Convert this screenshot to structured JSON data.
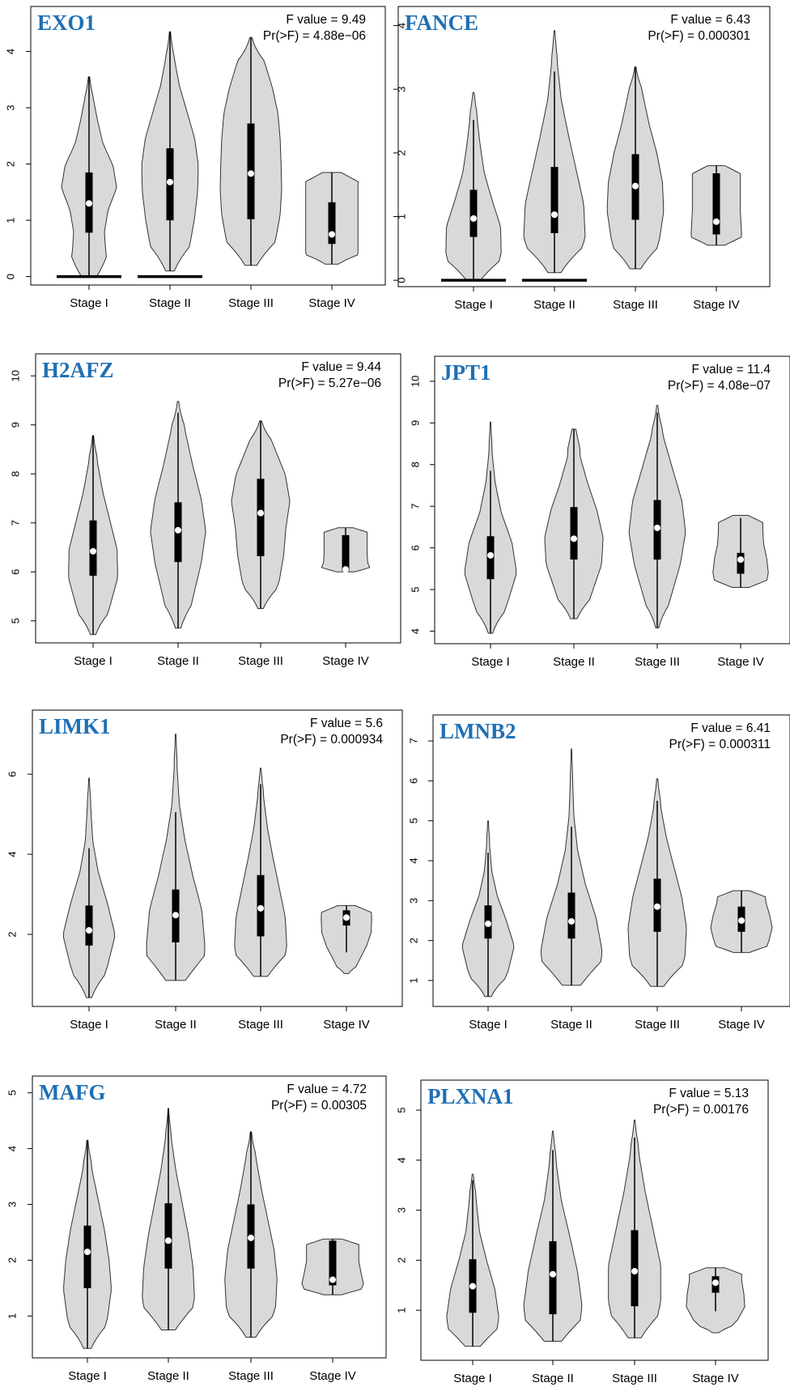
{
  "chart_data": [
    {
      "type": "violin",
      "gene": "EXO1",
      "f_value": "F value = 9.49",
      "p_value": "Pr(>F) = 4.88e−06",
      "categories": [
        "Stage I",
        "Stage II",
        "Stage III",
        "Stage IV"
      ],
      "ylim": [
        -0.15,
        4.8
      ],
      "yticks": [
        0,
        1,
        2,
        3,
        4
      ],
      "stages": [
        {
          "min": 0.0,
          "q1": 0.78,
          "median": 1.3,
          "q3": 1.85,
          "wl": 0.0,
          "wh": 3.55,
          "max": 3.55,
          "zero_bar": true,
          "shape": [
            0.7,
            0.55,
            0.5,
            0.62,
            0.9,
            0.78,
            0.45,
            0.28,
            0.14,
            0.06
          ]
        },
        {
          "min": 0.1,
          "q1": 1.0,
          "median": 1.68,
          "q3": 2.28,
          "wl": 0.1,
          "wh": 4.35,
          "max": 4.35,
          "zero_bar": true,
          "shape": [
            0.4,
            0.65,
            0.8,
            0.9,
            0.92,
            0.8,
            0.55,
            0.3,
            0.14,
            0.05
          ]
        },
        {
          "min": 0.2,
          "q1": 1.02,
          "median": 1.83,
          "q3": 2.72,
          "wl": 0.2,
          "wh": 4.25,
          "max": 4.25,
          "zero_bar": false,
          "shape": [
            0.55,
            0.8,
            0.95,
            1.0,
            0.98,
            0.95,
            0.88,
            0.7,
            0.45,
            0.1
          ]
        },
        {
          "min": 0.22,
          "q1": 0.58,
          "median": 0.75,
          "q3": 1.32,
          "wl": 0.22,
          "wh": 1.85,
          "max": 1.85,
          "zero_bar": false,
          "shape": [
            0.6,
            0.85,
            0.85,
            0.85,
            0.85,
            0.85,
            0.85,
            0.85,
            0.85,
            0.85
          ]
        }
      ]
    },
    {
      "type": "violin",
      "gene": "FANCE",
      "f_value": "F value = 6.43",
      "p_value": "Pr(>F) = 0.000301",
      "categories": [
        "Stage I",
        "Stage II",
        "Stage III",
        "Stage IV"
      ],
      "ylim": [
        -0.1,
        4.3
      ],
      "yticks": [
        0,
        1,
        2,
        3,
        4
      ],
      "stages": [
        {
          "min": 0.0,
          "q1": 0.68,
          "median": 0.97,
          "q3": 1.42,
          "wl": 0.0,
          "wh": 2.52,
          "max": 2.95,
          "zero_bar": true,
          "shape": [
            0.65,
            0.9,
            0.88,
            0.6,
            0.35,
            0.22,
            0.12,
            0.06
          ]
        },
        {
          "min": 0.12,
          "q1": 0.74,
          "median": 1.03,
          "q3": 1.78,
          "wl": 0.12,
          "wh": 3.28,
          "max": 3.92,
          "zero_bar": true,
          "shape": [
            0.6,
            1.0,
            0.95,
            0.7,
            0.45,
            0.22,
            0.1,
            0.04
          ]
        },
        {
          "min": 0.18,
          "q1": 0.95,
          "median": 1.48,
          "q3": 1.98,
          "wl": 0.18,
          "wh": 3.35,
          "max": 3.35,
          "zero_bar": false,
          "shape": [
            0.5,
            0.78,
            0.92,
            0.88,
            0.7,
            0.45,
            0.25,
            0.06
          ]
        },
        {
          "min": 0.55,
          "q1": 0.72,
          "median": 0.92,
          "q3": 1.68,
          "wl": 0.55,
          "wh": 1.8,
          "max": 1.8,
          "zero_bar": false,
          "shape": [
            0.78,
            0.82,
            0.8,
            0.78,
            0.78,
            0.78,
            0.78,
            0.78
          ]
        }
      ]
    },
    {
      "type": "violin",
      "gene": "H2AFZ",
      "f_value": "F value = 9.44",
      "p_value": "Pr(>F) = 5.27e−06",
      "categories": [
        "Stage I",
        "Stage II",
        "Stage III",
        "Stage IV"
      ],
      "ylim": [
        4.55,
        10.45
      ],
      "yticks": [
        5,
        6,
        7,
        8,
        9,
        10
      ],
      "stages": [
        {
          "min": 4.72,
          "q1": 5.92,
          "median": 6.42,
          "q3": 7.05,
          "wl": 4.72,
          "wh": 8.78,
          "max": 8.78,
          "zero_bar": false,
          "shape": [
            0.25,
            0.55,
            0.8,
            0.78,
            0.55,
            0.32,
            0.15,
            0.05
          ]
        },
        {
          "min": 4.85,
          "q1": 6.2,
          "median": 6.85,
          "q3": 7.42,
          "wl": 4.85,
          "wh": 9.25,
          "max": 9.48,
          "zero_bar": false,
          "shape": [
            0.25,
            0.5,
            0.75,
            0.9,
            0.75,
            0.48,
            0.25,
            0.06
          ]
        },
        {
          "min": 5.25,
          "q1": 6.32,
          "median": 7.2,
          "q3": 7.9,
          "wl": 5.25,
          "wh": 9.08,
          "max": 9.08,
          "zero_bar": false,
          "shape": [
            0.25,
            0.6,
            0.75,
            0.82,
            0.95,
            0.8,
            0.45,
            0.1
          ]
        },
        {
          "min": 6.0,
          "q1": 6.02,
          "median": 6.05,
          "q3": 6.75,
          "wl": 6.0,
          "wh": 6.9,
          "max": 6.9,
          "zero_bar": false,
          "shape": [
            0.85,
            0.72,
            0.7,
            0.7,
            0.7,
            0.7
          ]
        }
      ]
    },
    {
      "type": "violin",
      "gene": "JPT1",
      "f_value": "F value = 11.4",
      "p_value": "Pr(>F) = 4.08e−07",
      "categories": [
        "Stage I",
        "Stage II",
        "Stage III",
        "Stage IV"
      ],
      "ylim": [
        3.7,
        10.6
      ],
      "yticks": [
        4,
        5,
        6,
        7,
        8,
        9,
        10
      ],
      "stages": [
        {
          "min": 3.95,
          "q1": 5.25,
          "median": 5.82,
          "q3": 6.28,
          "wl": 3.95,
          "wh": 7.85,
          "max": 9.02,
          "zero_bar": false,
          "shape": [
            0.2,
            0.55,
            0.85,
            0.7,
            0.35,
            0.15,
            0.05,
            0.03
          ]
        },
        {
          "min": 4.3,
          "q1": 5.72,
          "median": 6.22,
          "q3": 6.98,
          "wl": 4.3,
          "wh": 8.85,
          "max": 8.85,
          "zero_bar": false,
          "shape": [
            0.3,
            0.6,
            0.9,
            0.95,
            0.75,
            0.45,
            0.2,
            0.18
          ]
        },
        {
          "min": 4.08,
          "q1": 5.72,
          "median": 6.48,
          "q3": 7.15,
          "wl": 4.08,
          "wh": 9.25,
          "max": 9.42,
          "zero_bar": false,
          "shape": [
            0.15,
            0.45,
            0.75,
            0.92,
            0.8,
            0.5,
            0.2,
            0.05
          ]
        },
        {
          "min": 5.05,
          "q1": 5.38,
          "median": 5.72,
          "q3": 5.88,
          "wl": 5.05,
          "wh": 6.72,
          "max": 6.78,
          "zero_bar": false,
          "shape": [
            0.8,
            0.9,
            0.85,
            0.75,
            0.72,
            0.72
          ]
        }
      ]
    },
    {
      "type": "violin",
      "gene": "LIMK1",
      "f_value": "F value = 5.6",
      "p_value": "Pr(>F) = 0.000934",
      "categories": [
        "Stage I",
        "Stage II",
        "Stage III",
        "Stage IV"
      ],
      "ylim": [
        0.2,
        7.6
      ],
      "yticks": [
        2,
        4,
        6
      ],
      "stages": [
        {
          "min": 0.42,
          "q1": 1.72,
          "median": 2.1,
          "q3": 2.72,
          "wl": 0.42,
          "wh": 4.15,
          "max": 5.9,
          "zero_bar": false,
          "shape": [
            0.25,
            0.6,
            0.85,
            0.6,
            0.3,
            0.12,
            0.06,
            0.03
          ]
        },
        {
          "min": 0.85,
          "q1": 1.8,
          "median": 2.48,
          "q3": 3.12,
          "wl": 0.85,
          "wh": 5.05,
          "max": 7.0,
          "zero_bar": false,
          "shape": [
            0.9,
            0.95,
            0.85,
            0.55,
            0.3,
            0.12,
            0.05,
            0.03
          ]
        },
        {
          "min": 0.95,
          "q1": 1.95,
          "median": 2.65,
          "q3": 3.48,
          "wl": 0.95,
          "wh": 5.75,
          "max": 6.15,
          "zero_bar": false,
          "shape": [
            0.65,
            0.85,
            0.8,
            0.6,
            0.4,
            0.22,
            0.1,
            0.04
          ]
        },
        {
          "min": 1.02,
          "q1": 2.22,
          "median": 2.42,
          "q3": 2.6,
          "wl": 1.55,
          "wh": 2.72,
          "max": 2.72,
          "zero_bar": false,
          "shape": [
            0.2,
            0.42,
            0.65,
            0.8,
            0.82,
            0.8
          ]
        }
      ]
    },
    {
      "type": "violin",
      "gene": "LMNB2",
      "f_value": "F value = 6.41",
      "p_value": "Pr(>F) = 0.000311",
      "categories": [
        "Stage I",
        "Stage II",
        "Stage III",
        "Stage IV"
      ],
      "ylim": [
        0.35,
        7.65
      ],
      "yticks": [
        1,
        2,
        3,
        4,
        5,
        6,
        7
      ],
      "stages": [
        {
          "min": 0.6,
          "q1": 2.05,
          "median": 2.42,
          "q3": 2.88,
          "wl": 0.6,
          "wh": 4.2,
          "max": 5.0,
          "zero_bar": false,
          "shape": [
            0.3,
            0.65,
            0.85,
            0.6,
            0.3,
            0.12,
            0.05,
            0.03
          ]
        },
        {
          "min": 0.88,
          "q1": 2.05,
          "median": 2.48,
          "q3": 3.2,
          "wl": 0.88,
          "wh": 4.85,
          "max": 6.8,
          "zero_bar": false,
          "shape": [
            0.85,
            1.0,
            0.8,
            0.45,
            0.2,
            0.08,
            0.04,
            0.02
          ]
        },
        {
          "min": 0.85,
          "q1": 2.22,
          "median": 2.85,
          "q3": 3.55,
          "wl": 0.85,
          "wh": 5.5,
          "max": 6.05,
          "zero_bar": false,
          "shape": [
            0.6,
            0.9,
            0.95,
            0.8,
            0.55,
            0.3,
            0.12,
            0.05
          ]
        },
        {
          "min": 1.7,
          "q1": 2.22,
          "median": 2.5,
          "q3": 2.85,
          "wl": 1.7,
          "wh": 3.25,
          "max": 3.25,
          "zero_bar": false,
          "shape": [
            0.75,
            0.9,
            1.0,
            0.92,
            0.8,
            0.75
          ]
        }
      ]
    },
    {
      "type": "violin",
      "gene": "MAFG",
      "f_value": "F value = 4.72",
      "p_value": "Pr(>F) = 0.00305",
      "categories": [
        "Stage I",
        "Stage II",
        "Stage III",
        "Stage IV"
      ],
      "ylim": [
        0.25,
        5.3
      ],
      "yticks": [
        1,
        2,
        3,
        4,
        5
      ],
      "stages": [
        {
          "min": 0.42,
          "q1": 1.5,
          "median": 2.15,
          "q3": 2.62,
          "wl": 0.42,
          "wh": 4.15,
          "max": 4.15,
          "zero_bar": false,
          "shape": [
            0.35,
            0.65,
            0.78,
            0.7,
            0.55,
            0.35,
            0.15,
            0.05
          ]
        },
        {
          "min": 0.75,
          "q1": 1.85,
          "median": 2.35,
          "q3": 3.02,
          "wl": 0.75,
          "wh": 4.72,
          "max": 4.72,
          "zero_bar": false,
          "shape": [
            0.65,
            0.85,
            0.8,
            0.65,
            0.45,
            0.25,
            0.1,
            0.03
          ]
        },
        {
          "min": 0.62,
          "q1": 1.85,
          "median": 2.4,
          "q3": 3.0,
          "wl": 0.62,
          "wh": 4.3,
          "max": 4.3,
          "zero_bar": false,
          "shape": [
            0.45,
            0.8,
            0.85,
            0.75,
            0.55,
            0.35,
            0.18,
            0.05
          ]
        },
        {
          "min": 1.38,
          "q1": 1.55,
          "median": 1.65,
          "q3": 2.35,
          "wl": 1.38,
          "wh": 2.38,
          "max": 2.38,
          "zero_bar": false,
          "shape": [
            0.85,
            1.0,
            0.92,
            0.85,
            0.85,
            0.85
          ]
        }
      ]
    },
    {
      "type": "violin",
      "gene": "PLXNA1",
      "f_value": "F value = 5.13",
      "p_value": "Pr(>F) = 0.00176",
      "categories": [
        "Stage I",
        "Stage II",
        "Stage III",
        "Stage IV"
      ],
      "ylim": [
        0.0,
        5.6
      ],
      "yticks": [
        1,
        2,
        3,
        4,
        5
      ],
      "stages": [
        {
          "min": 0.28,
          "q1": 0.95,
          "median": 1.48,
          "q3": 2.02,
          "wl": 0.28,
          "wh": 3.6,
          "max": 3.72,
          "zero_bar": false,
          "shape": [
            0.7,
            0.85,
            0.72,
            0.45,
            0.22,
            0.12,
            0.05
          ]
        },
        {
          "min": 0.38,
          "q1": 0.92,
          "median": 1.72,
          "q3": 2.38,
          "wl": 0.38,
          "wh": 4.2,
          "max": 4.58,
          "zero_bar": false,
          "shape": [
            0.8,
            0.95,
            0.8,
            0.55,
            0.28,
            0.12,
            0.04
          ]
        },
        {
          "min": 0.45,
          "q1": 1.08,
          "median": 1.78,
          "q3": 2.6,
          "wl": 0.45,
          "wh": 4.45,
          "max": 4.8,
          "zero_bar": false,
          "shape": [
            0.6,
            0.85,
            0.85,
            0.6,
            0.35,
            0.15,
            0.04
          ]
        },
        {
          "min": 0.55,
          "q1": 1.35,
          "median": 1.55,
          "q3": 1.68,
          "wl": 0.98,
          "wh": 1.85,
          "max": 1.85,
          "zero_bar": false,
          "shape": [
            0.3,
            0.72,
            0.95,
            0.92,
            0.85,
            0.85
          ]
        }
      ]
    }
  ]
}
